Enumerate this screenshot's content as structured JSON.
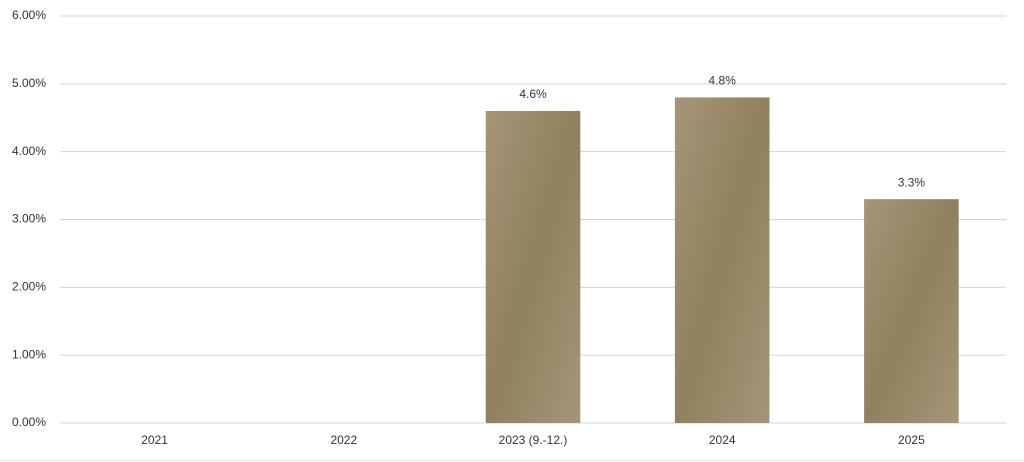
{
  "chart_data": {
    "type": "bar",
    "categories": [
      "2021",
      "2022",
      "2023 (9.-12.)",
      "2024",
      "2025"
    ],
    "values": [
      null,
      null,
      4.6,
      4.8,
      3.3
    ],
    "value_labels": [
      null,
      null,
      "4.6%",
      "4.8%",
      "3.3%"
    ],
    "color": "#8f8160",
    "ylim": [
      0,
      6
    ],
    "yticks": [
      {
        "value": 0,
        "label": "0.00%"
      },
      {
        "value": 1,
        "label": "1.00%"
      },
      {
        "value": 2,
        "label": "2.00%"
      },
      {
        "value": 3,
        "label": "3.00%"
      },
      {
        "value": 4,
        "label": "4.00%"
      },
      {
        "value": 5,
        "label": "5.00%"
      },
      {
        "value": 6,
        "label": "6.00%"
      }
    ],
    "grid": true
  }
}
